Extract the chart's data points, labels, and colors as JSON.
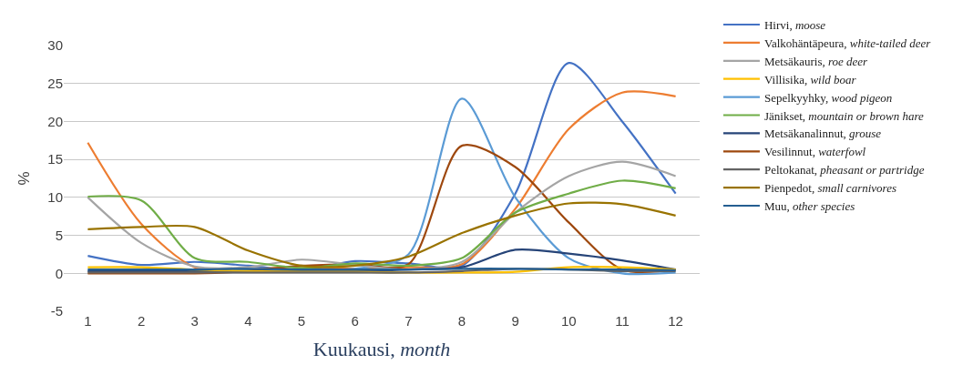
{
  "chart_data": {
    "type": "line",
    "xlabel": "Kuukausi, month",
    "ylabel": "%",
    "x": [
      1,
      2,
      3,
      4,
      5,
      6,
      7,
      8,
      9,
      10,
      11,
      12
    ],
    "xlim": [
      0.55,
      12.45
    ],
    "xticks": [
      1,
      2,
      3,
      4,
      5,
      6,
      7,
      8,
      9,
      10,
      11,
      12
    ],
    "ylim": [
      -5,
      30
    ],
    "yticks": [
      -5,
      0,
      5,
      10,
      15,
      20,
      25,
      30
    ],
    "grid": "y",
    "legend": "right",
    "series": [
      {
        "name": "Hirvi, moose",
        "color": "#4472c4",
        "values": [
          2.3,
          1.1,
          1.5,
          1.0,
          0.4,
          1.6,
          1.3,
          1.0,
          10.5,
          27.7,
          20,
          10.5
        ]
      },
      {
        "name": "Valkohäntäpeura, white-tailed deer",
        "color": "#ed7d31",
        "values": [
          17.2,
          6.5,
          0.8,
          0.5,
          0.9,
          0.6,
          0.8,
          1.2,
          8.5,
          19,
          23.8,
          23.3
        ]
      },
      {
        "name": "Metsäkauris, roe deer",
        "color": "#a5a5a5",
        "values": [
          10,
          4,
          0.9,
          0.8,
          1.8,
          1.1,
          0.5,
          1.5,
          8,
          12.8,
          14.7,
          12.8
        ]
      },
      {
        "name": "Villisika, wild boar",
        "color": "#ffc000",
        "values": [
          0.8,
          0.8,
          0.5,
          0.3,
          0.2,
          0.2,
          0.1,
          0.1,
          0.2,
          0.8,
          0.8,
          0.5
        ]
      },
      {
        "name": "Sepelkyyhky, wood pigeon",
        "color": "#5b9bd5",
        "values": [
          0.3,
          0.3,
          0.4,
          0.5,
          0.6,
          0.6,
          2.5,
          23,
          10,
          2,
          0,
          0.1
        ]
      },
      {
        "name": "Jänikset, mountain or brown hare",
        "color": "#70ad47",
        "values": [
          10.1,
          9.6,
          2.0,
          1.5,
          0.7,
          1.3,
          1.0,
          2.0,
          8,
          10.5,
          12.2,
          11.2
        ]
      },
      {
        "name": "Metsäkanalinnut, grouse",
        "color": "#264478",
        "values": [
          0.3,
          0.3,
          0.3,
          0.3,
          0.3,
          0.3,
          0.5,
          0.8,
          3.1,
          2.6,
          1.7,
          0.5
        ]
      },
      {
        "name": "Vesilinnut, waterfowl",
        "color": "#9e480e",
        "values": [
          0,
          0,
          0,
          0.3,
          1.0,
          1.2,
          1.2,
          16.8,
          14,
          6.7,
          0.5,
          0.5
        ]
      },
      {
        "name": "Peltokanat, pheasant or partridge",
        "color": "#636363",
        "values": [
          0.1,
          0.1,
          0.1,
          0.1,
          0.1,
          0.1,
          0.1,
          0.3,
          0.6,
          0.5,
          0.3,
          0.3
        ]
      },
      {
        "name": "Pienpedot, small carnivores",
        "color": "#997300",
        "values": [
          5.8,
          6.1,
          6.1,
          3,
          1,
          1,
          2.2,
          5.3,
          7.6,
          9.2,
          9.1,
          7.6
        ]
      },
      {
        "name": "Muu, other species",
        "color": "#255e91",
        "values": [
          0.5,
          0.5,
          0.5,
          0.6,
          0.5,
          0.5,
          0.5,
          0.6,
          0.6,
          0.5,
          0.5,
          0.4
        ]
      }
    ]
  }
}
